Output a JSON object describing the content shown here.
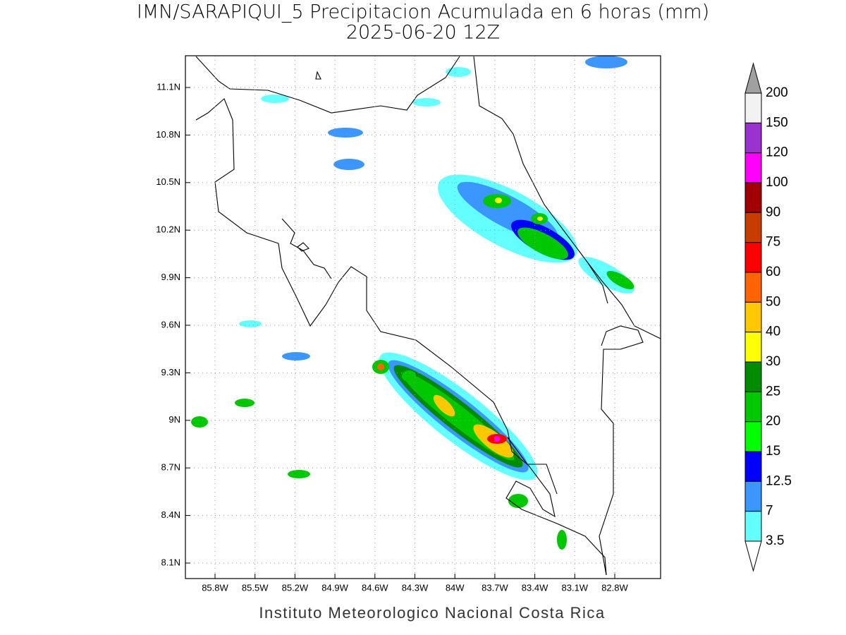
{
  "header": {
    "title": "IMN/SARAPIQUI_5 Precipitacion Acumulada en 6 horas (mm)",
    "subtitle": "2025-06-20 12Z"
  },
  "map": {
    "lat_labels": [
      "11.1N",
      "10.8N",
      "10.5N",
      "10.2N",
      "9.9N",
      "9.6N",
      "9.3N",
      "9N",
      "8.7N",
      "8.4N",
      "8.1N"
    ],
    "lon_labels": [
      "85.8W",
      "85.5W",
      "85.2W",
      "84.9W",
      "84.6W",
      "84.3W",
      "84W",
      "83.7W",
      "83.4W",
      "83.1W",
      "82.8W"
    ]
  },
  "colorbar": {
    "labels": [
      "200",
      "150",
      "120",
      "100",
      "90",
      "75",
      "60",
      "50",
      "40",
      "30",
      "25",
      "20",
      "15",
      "12.5",
      "7",
      "3.5"
    ],
    "colors": [
      "#f2f2f2",
      "#9a32cd",
      "#ff00ff",
      "#a00000",
      "#c83c00",
      "#ff0000",
      "#ff6400",
      "#ffc800",
      "#ffff00",
      "#008c00",
      "#00c800",
      "#00ff00",
      "#0000ff",
      "#3c96ff",
      "#64ffff"
    ],
    "over_color": "#a0a0a0",
    "under_color": "#ffffff"
  },
  "footer": {
    "credit": "Instituto Meteorologico Nacional Costa Rica"
  }
}
